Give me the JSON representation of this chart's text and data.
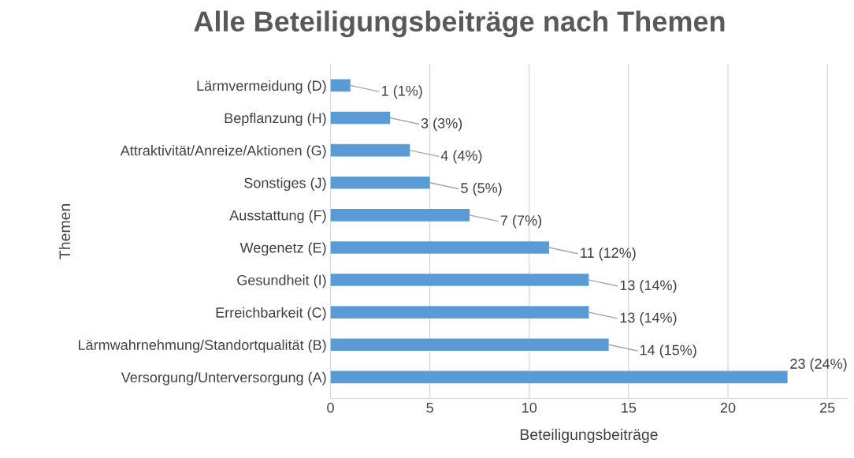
{
  "chart_data": {
    "type": "bar",
    "orientation": "horizontal",
    "title": "Alle Beteiligungsbeiträge nach Themen",
    "xlabel": "Beteiligungsbeiträge",
    "ylabel": "Themen",
    "categories": [
      "Lärmvermeidung (D)",
      "Bepflanzung (H)",
      "Attraktivität/Anreize/Aktionen (G)",
      "Sonstiges (J)",
      "Ausstattung (F)",
      "Wegenetz (E)",
      "Gesundheit (I)",
      "Erreichbarkeit (C)",
      "Lärmwahrnehmung/Standortqualität (B)",
      "Versorgung/Unterversorgung (A)"
    ],
    "values": [
      1,
      3,
      4,
      5,
      7,
      11,
      13,
      13,
      14,
      23
    ],
    "value_labels": [
      "1 (1%)",
      "3 (3%)",
      "4 (4%)",
      "5 (5%)",
      "7 (7%)",
      "11 (12%)",
      "13 (14%)",
      "13 (14%)",
      "14 (15%)",
      "23 (24%)"
    ],
    "color": "#5b9bd5",
    "xlim": [
      0,
      26
    ],
    "xticks": [
      0,
      5,
      10,
      15,
      20,
      25
    ],
    "grid": "x"
  }
}
